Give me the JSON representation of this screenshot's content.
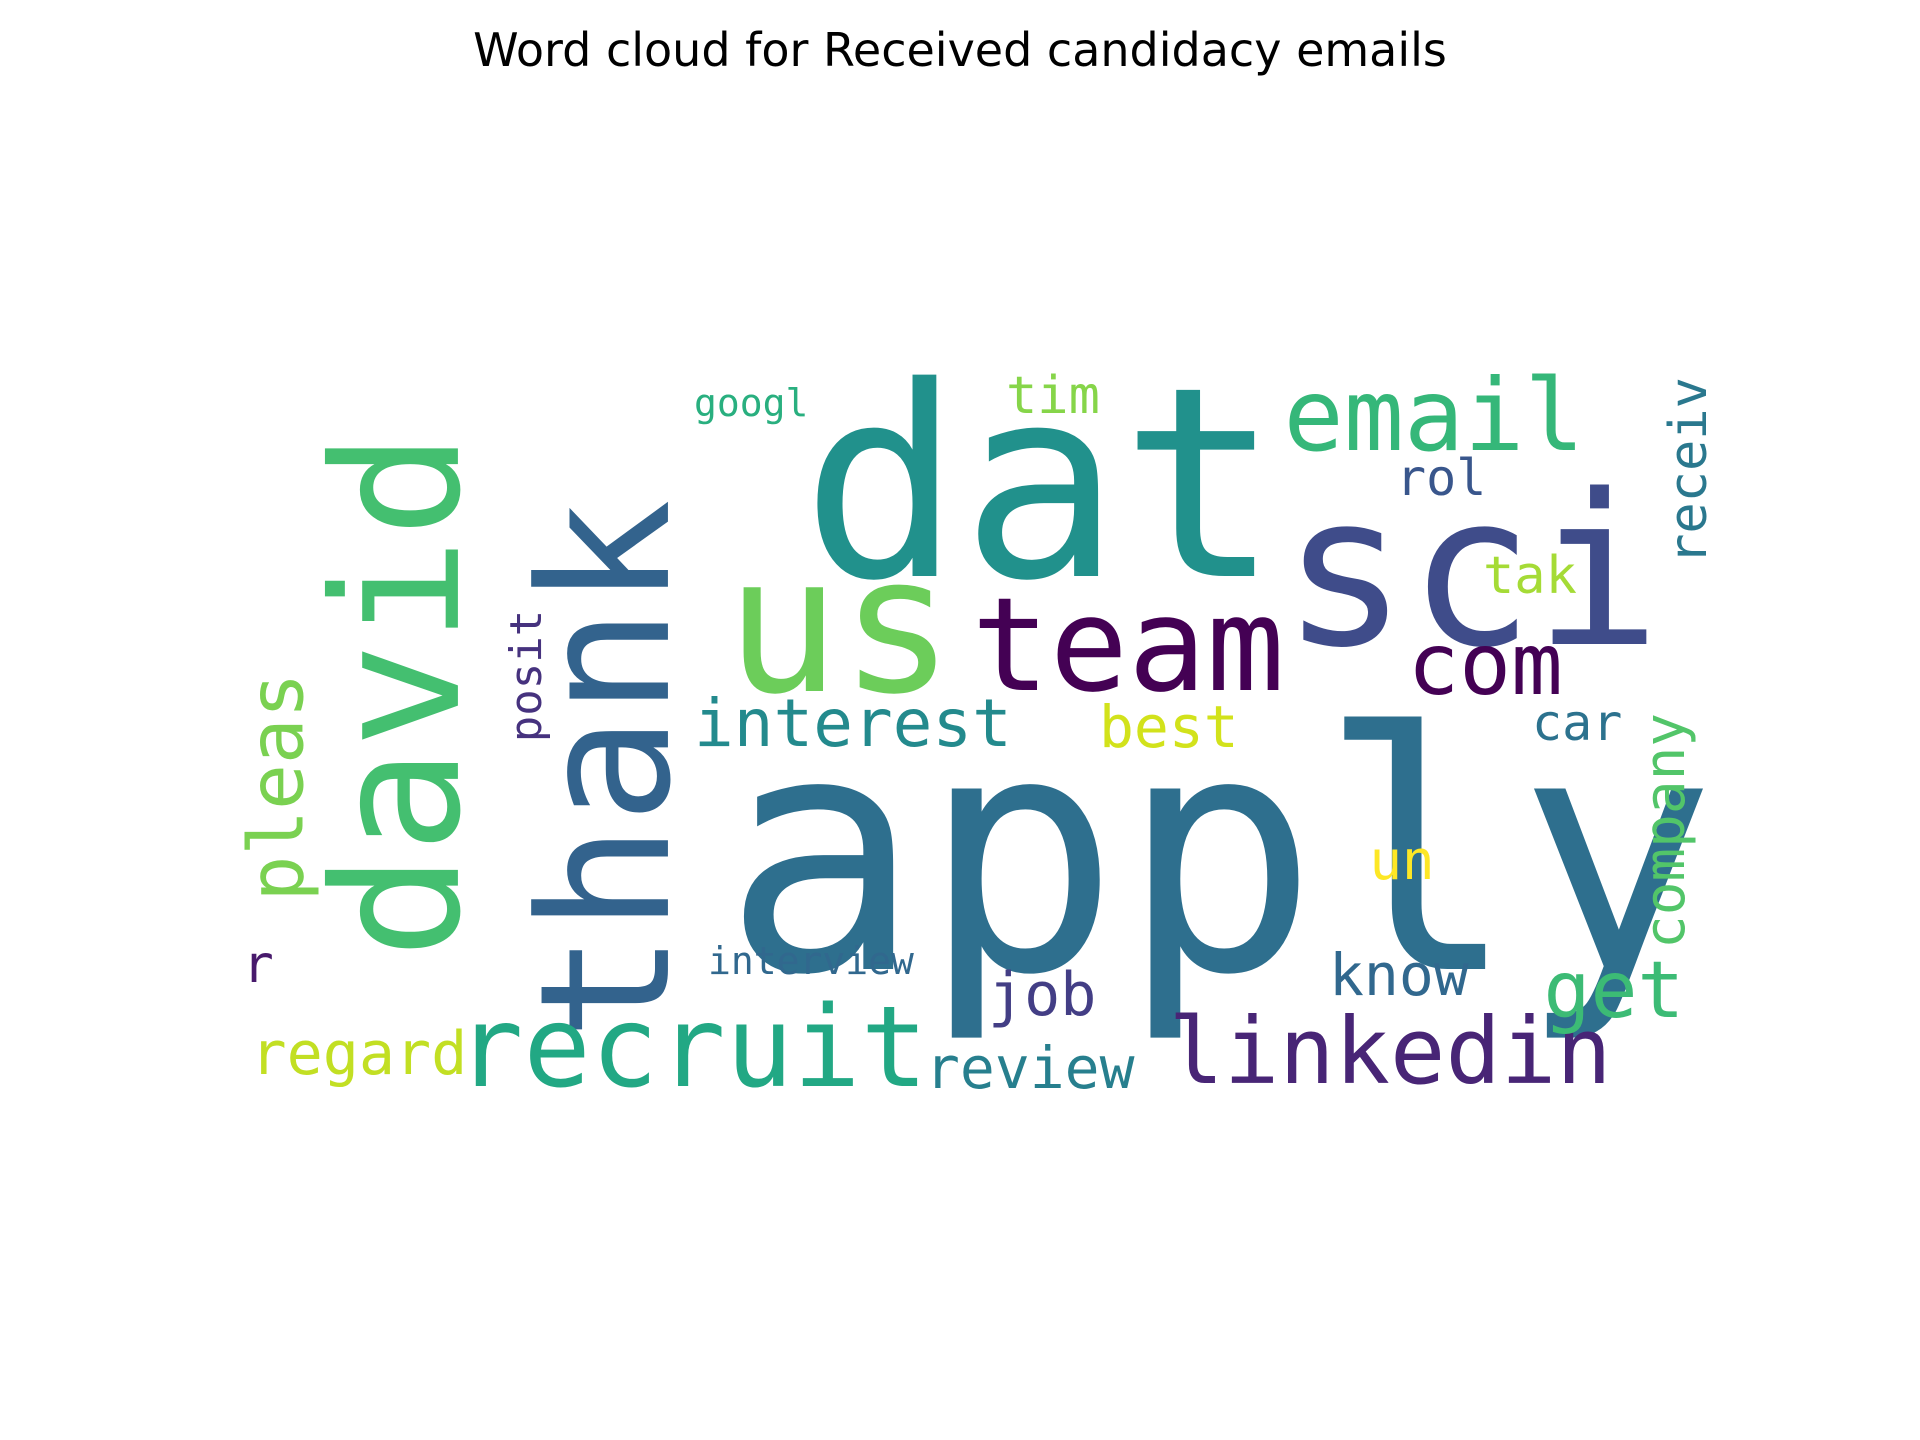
{
  "chart_data": {
    "type": "wordcloud",
    "title": "Word cloud for Received candidacy emails",
    "words": [
      {
        "text": "apply",
        "color": "#2e6f8e"
      },
      {
        "text": "sci",
        "color": "#3f4c8a"
      },
      {
        "text": "dat",
        "color": "#21918c"
      },
      {
        "text": "thank",
        "color": "#33638d"
      },
      {
        "text": "david",
        "color": "#44bf70"
      },
      {
        "text": "us",
        "color": "#6ccd5a"
      },
      {
        "text": "team",
        "color": "#440154"
      },
      {
        "text": "recruit",
        "color": "#22a884"
      },
      {
        "text": "email",
        "color": "#35b779"
      },
      {
        "text": "linkedin",
        "color": "#482576"
      },
      {
        "text": "com",
        "color": "#440154"
      },
      {
        "text": "interest",
        "color": "#238a8d"
      },
      {
        "text": "get",
        "color": "#3cbb75"
      },
      {
        "text": "pleas",
        "color": "#7ad151"
      },
      {
        "text": "company",
        "color": "#52c569"
      },
      {
        "text": "review",
        "color": "#277f8e"
      },
      {
        "text": "job",
        "color": "#433e85"
      },
      {
        "text": "know",
        "color": "#31688e"
      },
      {
        "text": "regard",
        "color": "#c2df23"
      },
      {
        "text": "best",
        "color": "#d2e21b"
      },
      {
        "text": "receiv",
        "color": "#2a788e"
      },
      {
        "text": "car",
        "color": "#2c728e"
      },
      {
        "text": "un",
        "color": "#fde725"
      },
      {
        "text": "tim",
        "color": "#86d549"
      },
      {
        "text": "tak",
        "color": "#a5db36"
      },
      {
        "text": "rol",
        "color": "#39568c"
      },
      {
        "text": "posit",
        "color": "#46327e"
      },
      {
        "text": "r",
        "color": "#481a6c"
      },
      {
        "text": "interview",
        "color": "#31688e"
      },
      {
        "text": "googl",
        "color": "#29af7f"
      }
    ]
  }
}
